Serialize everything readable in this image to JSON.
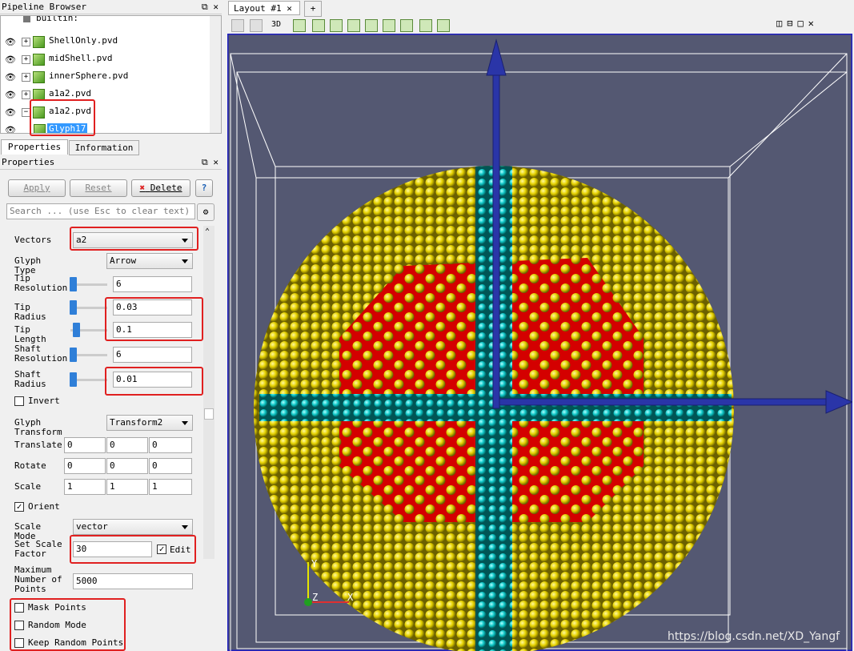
{
  "pipeline_browser": {
    "title": "Pipeline Browser",
    "items": [
      "builtin:",
      "ShellOnly.pvd",
      "midShell.pvd",
      "innerSphere.pvd",
      "a1a2.pvd",
      "a1a2.pvd",
      "Glyph17"
    ]
  },
  "tabs": [
    "Properties",
    "Information"
  ],
  "properties": {
    "title": "Properties",
    "buttons": [
      "Apply",
      "Reset",
      "Delete",
      "?"
    ],
    "search_placeholder": "Search ... (use Esc to clear text)",
    "fields": [
      {
        "label": "Vectors",
        "value": "a2"
      },
      {
        "label": "Glyph Type",
        "value": "Arrow"
      },
      {
        "label": "Tip Resolution",
        "value": "6"
      },
      {
        "label": "Tip Radius",
        "value": "0.03"
      },
      {
        "label": "Tip Length",
        "value": "0.1"
      },
      {
        "label": "Shaft Resolution",
        "value": "6"
      },
      {
        "label": "Shaft Radius",
        "value": "0.01"
      },
      {
        "label": "Invert",
        "checked": false
      },
      {
        "label": "Glyph Transform",
        "value": "Transform2"
      },
      {
        "label": "Translate",
        "values": [
          "0",
          "0",
          "0"
        ]
      },
      {
        "label": "Rotate",
        "values": [
          "0",
          "0",
          "0"
        ]
      },
      {
        "label": "Scale",
        "values": [
          "1",
          "1",
          "1"
        ]
      },
      {
        "label": "Orient",
        "checked": true
      },
      {
        "label": "Scale Mode",
        "value": "vector"
      },
      {
        "label": "Set Scale Factor",
        "value": "30",
        "option": {
          "label": "Edit",
          "checked": true
        }
      },
      {
        "label": "Maximum Number of Points",
        "value": "5000"
      },
      {
        "label": "Mask Points",
        "checked": false
      },
      {
        "label": "Random Mode",
        "checked": false
      },
      {
        "label": "Keep Random Points",
        "checked": false
      }
    ]
  },
  "layout": {
    "tab": "Layout #1",
    "add_tab": "+",
    "view_mode": "3D",
    "axes": [
      "Y",
      "Z",
      "X"
    ],
    "watermark": "https://blog.csdn.net/XD_Yangf"
  }
}
